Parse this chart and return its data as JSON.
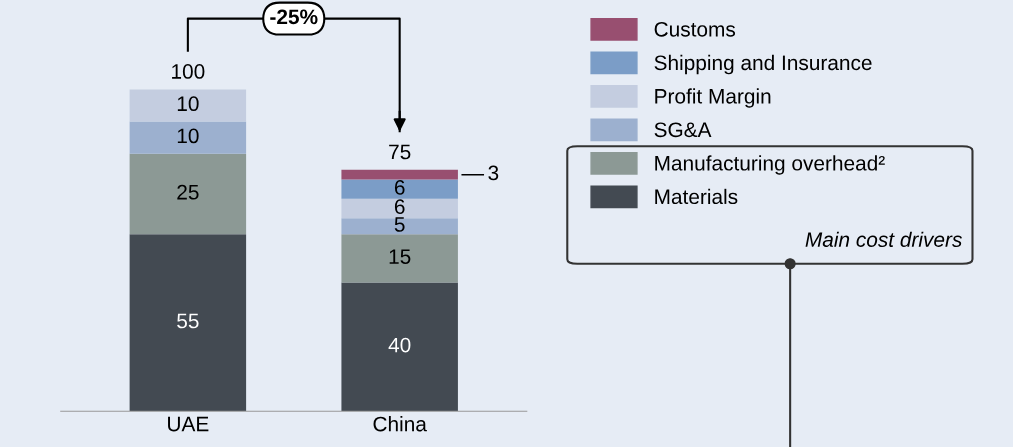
{
  "chart_data": {
    "type": "bar",
    "stacked": true,
    "categories": [
      "UAE",
      "China"
    ],
    "series": [
      {
        "name": "Materials",
        "color": "#434a52",
        "values": [
          55,
          40
        ]
      },
      {
        "name": "Manufacturing overhead²",
        "color": "#8c9995",
        "values": [
          25,
          15
        ]
      },
      {
        "name": "SG&A",
        "color": "#9cb0cf",
        "values": [
          10,
          5
        ]
      },
      {
        "name": "Profit Margin",
        "color": "#c4cde0",
        "values": [
          10,
          6
        ]
      },
      {
        "name": "Shipping and Insurance",
        "color": "#7b9dc7",
        "values": [
          null,
          6
        ]
      },
      {
        "name": "Customs",
        "color": "#984f70",
        "values": [
          null,
          3
        ]
      }
    ],
    "data_labels": true,
    "totals": [
      "100",
      "75"
    ],
    "legend": "top right",
    "annotations": [
      "-25%",
      "Main cost drivers"
    ]
  }
}
